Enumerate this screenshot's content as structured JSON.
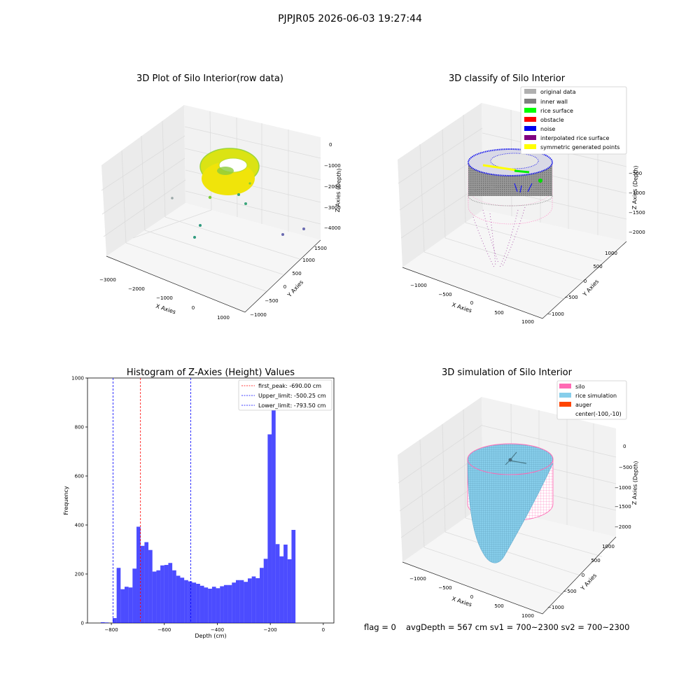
{
  "figure": {
    "suptitle": "PJPJR05 2026-06-03 19:27:44",
    "footer": {
      "flag": "flag = 0",
      "avg": "avgDepth = 567 cm  sv1 = 700~2300  sv2 = 700~2300"
    }
  },
  "chart_data": [
    {
      "type": "scatter",
      "subtype": "3d-scatter",
      "title": "3D Plot of Silo Interior(row data)",
      "xlabel": "X Axies",
      "ylabel": "Y Axies",
      "zlabel": "Z Axies (Depth)",
      "xticks": [
        "−3000",
        "−2000",
        "−1000",
        "0",
        "1000"
      ],
      "yticks": [
        "−1000",
        "−500",
        "0",
        "500",
        "1000",
        "1500"
      ],
      "zticks": [
        "0",
        "−1000",
        "−2000",
        "−3000",
        "−4000"
      ],
      "colormap": [
        "#2c7fb8",
        "#3aa67b",
        "#7ccc3c",
        "#dce319",
        "#fde725"
      ],
      "grid": true
    },
    {
      "type": "scatter",
      "subtype": "3d-classified",
      "title": "3D classify of Silo Interior",
      "xlabel": "X Axies",
      "ylabel": "Y Axies",
      "zlabel": "Z Axies (Depth)",
      "xticks": [
        "−1000",
        "−500",
        "0",
        "500",
        "1000"
      ],
      "yticks": [
        "−1000",
        "−500",
        "0",
        "500",
        "1000"
      ],
      "zticks": [
        "−500",
        "−1000",
        "−1500",
        "−2000"
      ],
      "legend_position": "top-right",
      "legend": [
        {
          "label": "original data",
          "color": "#b0b0b0"
        },
        {
          "label": "inner wall",
          "color": "#808080"
        },
        {
          "label": "rice surface",
          "color": "#00ff00"
        },
        {
          "label": "obstacle",
          "color": "#ff0000"
        },
        {
          "label": "noise",
          "color": "#0000ee"
        },
        {
          "label": "interpolated rice surface",
          "color": "#800080"
        },
        {
          "label": "symmetric generated points",
          "color": "#ffff00"
        }
      ],
      "grid": true
    },
    {
      "type": "bar",
      "subtype": "histogram",
      "title": "Histogram of Z-Axies (Height) Values",
      "xlabel": "Depth (cm)",
      "ylabel": "Frequency",
      "xlim": [
        -890,
        40
      ],
      "ylim": [
        0,
        1000
      ],
      "xticks": [
        -800,
        -600,
        -400,
        -200,
        0
      ],
      "xtick_labels": [
        "−800",
        "−600",
        "−400",
        "−200",
        "0"
      ],
      "yticks": [
        0,
        200,
        400,
        600,
        800,
        1000
      ],
      "bin_width": 15,
      "bin_start": -840,
      "values": [
        3,
        2,
        0,
        20,
        225,
        138,
        148,
        145,
        222,
        393,
        315,
        330,
        298,
        210,
        215,
        235,
        237,
        245,
        215,
        193,
        185,
        175,
        170,
        165,
        160,
        152,
        145,
        140,
        148,
        142,
        150,
        155,
        155,
        165,
        175,
        175,
        168,
        182,
        190,
        183,
        225,
        262,
        770,
        945,
        322,
        272,
        320,
        260,
        380
      ],
      "bar_color": "#0000ff",
      "bar_alpha": 0.7,
      "lines": [
        {
          "label": "first_peak: -690.00 cm",
          "x": -690.0,
          "color": "#ff0000"
        },
        {
          "label": "Upper_limit: -500.25 cm",
          "x": -500.25,
          "color": "#0000ff"
        },
        {
          "label": "Lower_limit: -793.50 cm",
          "x": -793.5,
          "color": "#0000ff"
        }
      ],
      "legend_position": "top-right",
      "grid": false
    },
    {
      "type": "scatter",
      "subtype": "3d-surface",
      "title": "3D simulation of Silo Interior",
      "xlabel": "X Axies",
      "ylabel": "Y Axies",
      "zlabel": "Z Axies (Depth)",
      "xticks": [
        "−1000",
        "−500",
        "0",
        "500",
        "1000"
      ],
      "yticks": [
        "−1000",
        "−500",
        "0",
        "500",
        "1000"
      ],
      "zticks": [
        "0",
        "−500",
        "−1000",
        "−1500",
        "−2000"
      ],
      "legend_position": "top-right",
      "legend": [
        {
          "label": "silo",
          "color": "#ff69b4"
        },
        {
          "label": "rice simulation",
          "color": "#87ceeb"
        },
        {
          "label": "auger",
          "color": "#ff4500"
        },
        {
          "label": "center(-100,-10)",
          "color": ""
        }
      ],
      "grid": true
    }
  ]
}
